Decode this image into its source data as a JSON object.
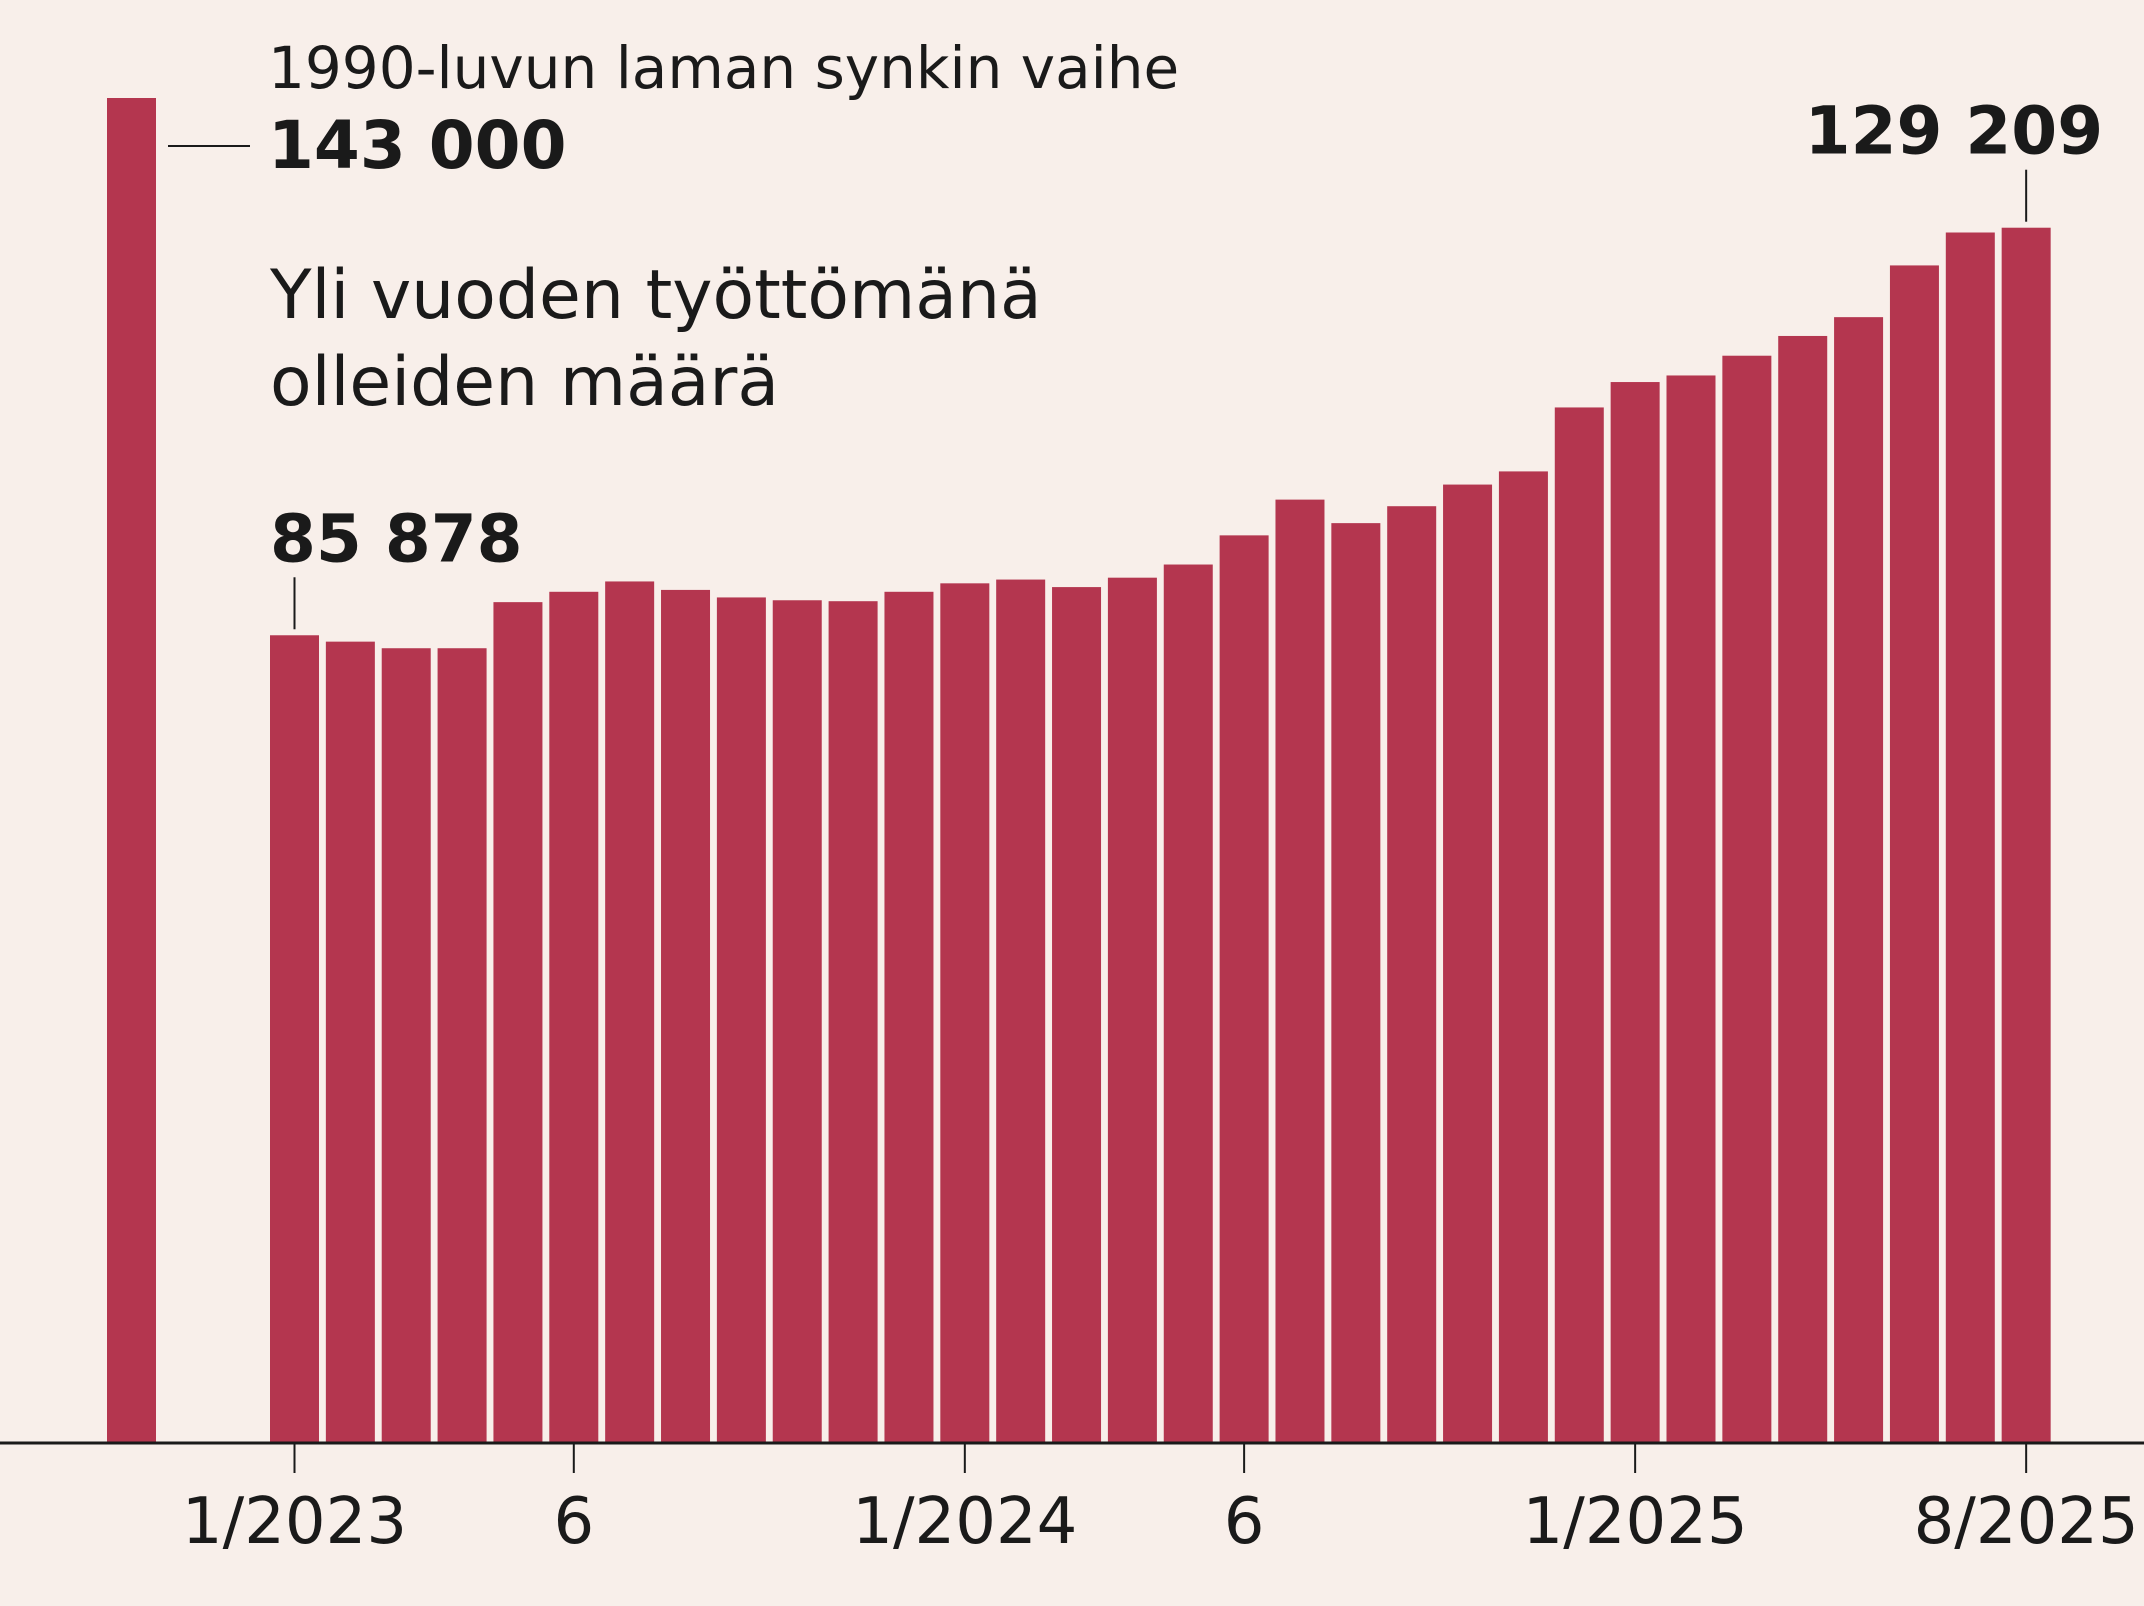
{
  "colors": {
    "background": "#f8efea",
    "bar": "#b4364f",
    "text": "#1a1a1a",
    "axis": "#1a1a1a"
  },
  "chart_data": {
    "type": "bar",
    "title": "Yli vuoden työttömänä olleiden määrä",
    "title_lines": [
      "Yli vuoden työttömänä",
      "olleiden määrä"
    ],
    "xlabel": "",
    "ylabel": "",
    "ylim": [
      0,
      143000
    ],
    "grid": false,
    "reference_bar": {
      "label": "1990-luvun laman synkin vaihe",
      "value": 143000,
      "value_label": "143 000"
    },
    "categories": [
      "1/2023",
      "2/2023",
      "3/2023",
      "4/2023",
      "5/2023",
      "6/2023",
      "7/2023",
      "8/2023",
      "9/2023",
      "10/2023",
      "11/2023",
      "12/2023",
      "1/2024",
      "2/2024",
      "3/2024",
      "4/2024",
      "5/2024",
      "6/2024",
      "7/2024",
      "8/2024",
      "9/2024",
      "10/2024",
      "11/2024",
      "12/2024",
      "1/2025",
      "2/2025",
      "3/2025",
      "4/2025",
      "5/2025",
      "6/2025",
      "7/2025",
      "8/2025"
    ],
    "values": [
      85878,
      85200,
      84500,
      84500,
      89400,
      90500,
      91600,
      90700,
      89900,
      89600,
      89500,
      90500,
      91400,
      91800,
      91000,
      92000,
      93400,
      96500,
      100300,
      97800,
      99600,
      101900,
      103300,
      110100,
      112800,
      113500,
      115600,
      117700,
      119700,
      125200,
      128700,
      129209
    ],
    "x_tick_labels": [
      {
        "category": "1/2023",
        "label": "1/2023"
      },
      {
        "category": "6/2023",
        "label": "6"
      },
      {
        "category": "1/2024",
        "label": "1/2024"
      },
      {
        "category": "6/2024",
        "label": "6"
      },
      {
        "category": "1/2025",
        "label": "1/2025"
      },
      {
        "category": "8/2025",
        "label": "8/2025"
      }
    ],
    "annotations": [
      {
        "category": "1/2023",
        "text": "85 878"
      },
      {
        "category": "8/2025",
        "text": "129 209"
      }
    ]
  }
}
